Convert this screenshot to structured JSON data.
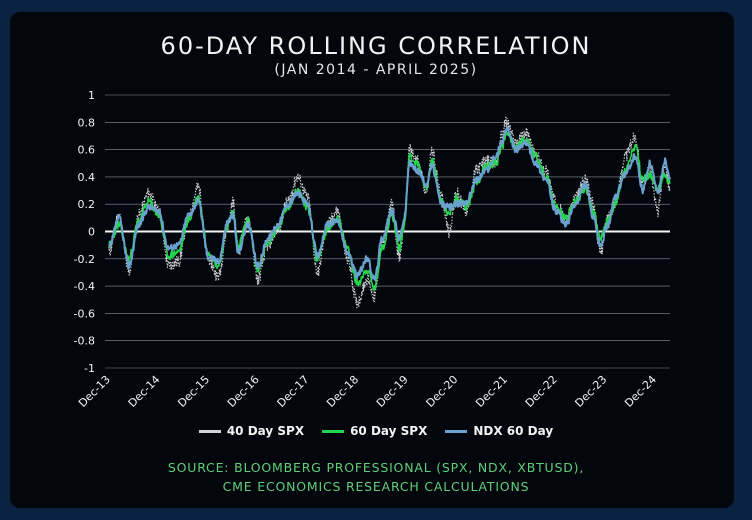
{
  "chart_data": {
    "type": "line",
    "title": "60-DAY ROLLING CORRELATION",
    "subtitle": "(JAN 2014 - APRIL 2025)",
    "ylim": [
      -1,
      1
    ],
    "yticks": [
      "1",
      "0.8",
      "0.6",
      "0.4",
      "0.2",
      "0",
      "-0.2",
      "-0.4",
      "-0.6",
      "-0.8",
      "-1"
    ],
    "xticks": [
      "Dec-13",
      "Dec-14",
      "Dec-15",
      "Dec-16",
      "Dec-17",
      "Dec-18",
      "Dec-19",
      "Dec-20",
      "Dec-21",
      "Dec-22",
      "Dec-23",
      "Dec-24"
    ],
    "x_start": 2013.92,
    "x_end": 2025.3,
    "series": [
      {
        "name": "40 Day SPX",
        "color": "#cfd3d8",
        "dash": "1.5,1.5",
        "points": [
          [
            2014.0,
            -0.15
          ],
          [
            2014.2,
            0.12
          ],
          [
            2014.4,
            -0.3
          ],
          [
            2014.6,
            0.12
          ],
          [
            2014.8,
            0.28
          ],
          [
            2015.0,
            0.15
          ],
          [
            2015.2,
            -0.25
          ],
          [
            2015.4,
            -0.22
          ],
          [
            2015.6,
            0.1
          ],
          [
            2015.8,
            0.33
          ],
          [
            2016.0,
            -0.2
          ],
          [
            2016.2,
            -0.33
          ],
          [
            2016.4,
            0.05
          ],
          [
            2016.5,
            0.22
          ],
          [
            2016.6,
            -0.15
          ],
          [
            2016.8,
            0.1
          ],
          [
            2017.0,
            -0.35
          ],
          [
            2017.2,
            -0.1
          ],
          [
            2017.4,
            0.02
          ],
          [
            2017.6,
            0.22
          ],
          [
            2017.8,
            0.4
          ],
          [
            2018.0,
            0.25
          ],
          [
            2018.2,
            -0.3
          ],
          [
            2018.4,
            0.05
          ],
          [
            2018.6,
            0.15
          ],
          [
            2018.8,
            -0.2
          ],
          [
            2019.0,
            -0.52
          ],
          [
            2019.2,
            -0.35
          ],
          [
            2019.35,
            -0.48
          ],
          [
            2019.5,
            -0.1
          ],
          [
            2019.7,
            0.2
          ],
          [
            2019.85,
            -0.2
          ],
          [
            2019.95,
            0.05
          ],
          [
            2020.05,
            0.6
          ],
          [
            2020.2,
            0.52
          ],
          [
            2020.4,
            0.3
          ],
          [
            2020.5,
            0.6
          ],
          [
            2020.7,
            0.25
          ],
          [
            2020.85,
            0.0
          ],
          [
            2021.0,
            0.28
          ],
          [
            2021.2,
            0.15
          ],
          [
            2021.4,
            0.45
          ],
          [
            2021.6,
            0.52
          ],
          [
            2021.8,
            0.5
          ],
          [
            2021.9,
            0.7
          ],
          [
            2022.0,
            0.8
          ],
          [
            2022.2,
            0.65
          ],
          [
            2022.4,
            0.72
          ],
          [
            2022.6,
            0.55
          ],
          [
            2022.8,
            0.45
          ],
          [
            2023.0,
            0.22
          ],
          [
            2023.2,
            0.08
          ],
          [
            2023.4,
            0.25
          ],
          [
            2023.6,
            0.38
          ],
          [
            2023.75,
            0.2
          ],
          [
            2023.9,
            -0.15
          ],
          [
            2024.05,
            0.1
          ],
          [
            2024.2,
            0.22
          ],
          [
            2024.4,
            0.55
          ],
          [
            2024.6,
            0.7
          ],
          [
            2024.75,
            0.35
          ],
          [
            2024.9,
            0.45
          ],
          [
            2025.05,
            0.15
          ],
          [
            2025.2,
            0.5
          ],
          [
            2025.3,
            0.3
          ]
        ]
      },
      {
        "name": "60 Day SPX",
        "color": "#22d64c",
        "dash": "",
        "points": [
          [
            2014.0,
            -0.1
          ],
          [
            2014.2,
            0.05
          ],
          [
            2014.4,
            -0.2
          ],
          [
            2014.6,
            0.08
          ],
          [
            2014.8,
            0.22
          ],
          [
            2015.0,
            0.12
          ],
          [
            2015.2,
            -0.18
          ],
          [
            2015.4,
            -0.15
          ],
          [
            2015.6,
            0.08
          ],
          [
            2015.8,
            0.25
          ],
          [
            2016.0,
            -0.15
          ],
          [
            2016.2,
            -0.25
          ],
          [
            2016.4,
            0.05
          ],
          [
            2016.5,
            0.15
          ],
          [
            2016.6,
            -0.1
          ],
          [
            2016.8,
            0.08
          ],
          [
            2017.0,
            -0.28
          ],
          [
            2017.2,
            -0.08
          ],
          [
            2017.4,
            0.02
          ],
          [
            2017.6,
            0.18
          ],
          [
            2017.8,
            0.3
          ],
          [
            2018.0,
            0.18
          ],
          [
            2018.2,
            -0.2
          ],
          [
            2018.4,
            0.02
          ],
          [
            2018.6,
            0.1
          ],
          [
            2018.8,
            -0.12
          ],
          [
            2019.0,
            -0.38
          ],
          [
            2019.2,
            -0.28
          ],
          [
            2019.35,
            -0.42
          ],
          [
            2019.5,
            -0.12
          ],
          [
            2019.7,
            0.12
          ],
          [
            2019.85,
            -0.12
          ],
          [
            2019.95,
            0.05
          ],
          [
            2020.05,
            0.55
          ],
          [
            2020.2,
            0.5
          ],
          [
            2020.4,
            0.32
          ],
          [
            2020.5,
            0.52
          ],
          [
            2020.7,
            0.22
          ],
          [
            2020.85,
            0.12
          ],
          [
            2021.0,
            0.25
          ],
          [
            2021.2,
            0.18
          ],
          [
            2021.4,
            0.35
          ],
          [
            2021.6,
            0.48
          ],
          [
            2021.8,
            0.5
          ],
          [
            2021.9,
            0.6
          ],
          [
            2022.0,
            0.72
          ],
          [
            2022.2,
            0.62
          ],
          [
            2022.4,
            0.68
          ],
          [
            2022.6,
            0.55
          ],
          [
            2022.8,
            0.4
          ],
          [
            2023.0,
            0.18
          ],
          [
            2023.2,
            0.1
          ],
          [
            2023.4,
            0.22
          ],
          [
            2023.6,
            0.32
          ],
          [
            2023.75,
            0.15
          ],
          [
            2023.9,
            -0.05
          ],
          [
            2024.05,
            0.08
          ],
          [
            2024.2,
            0.2
          ],
          [
            2024.4,
            0.45
          ],
          [
            2024.6,
            0.62
          ],
          [
            2024.75,
            0.38
          ],
          [
            2024.9,
            0.42
          ],
          [
            2025.05,
            0.3
          ],
          [
            2025.2,
            0.42
          ],
          [
            2025.3,
            0.35
          ]
        ]
      },
      {
        "name": "NDX 60 Day",
        "color": "#6aa2cf",
        "dash": "",
        "points": [
          [
            2014.0,
            -0.12
          ],
          [
            2014.2,
            0.1
          ],
          [
            2014.4,
            -0.25
          ],
          [
            2014.6,
            0.05
          ],
          [
            2014.8,
            0.18
          ],
          [
            2015.0,
            0.15
          ],
          [
            2015.2,
            -0.12
          ],
          [
            2015.4,
            -0.1
          ],
          [
            2015.6,
            0.12
          ],
          [
            2015.8,
            0.22
          ],
          [
            2016.0,
            -0.18
          ],
          [
            2016.2,
            -0.22
          ],
          [
            2016.4,
            0.08
          ],
          [
            2016.5,
            0.12
          ],
          [
            2016.6,
            -0.15
          ],
          [
            2016.8,
            0.05
          ],
          [
            2017.0,
            -0.25
          ],
          [
            2017.2,
            -0.05
          ],
          [
            2017.4,
            0.05
          ],
          [
            2017.6,
            0.2
          ],
          [
            2017.8,
            0.28
          ],
          [
            2018.0,
            0.2
          ],
          [
            2018.2,
            -0.18
          ],
          [
            2018.4,
            0.05
          ],
          [
            2018.6,
            0.08
          ],
          [
            2018.8,
            -0.15
          ],
          [
            2019.0,
            -0.32
          ],
          [
            2019.2,
            -0.2
          ],
          [
            2019.35,
            -0.35
          ],
          [
            2019.5,
            -0.05
          ],
          [
            2019.7,
            0.15
          ],
          [
            2019.85,
            -0.05
          ],
          [
            2019.95,
            0.1
          ],
          [
            2020.05,
            0.5
          ],
          [
            2020.2,
            0.45
          ],
          [
            2020.4,
            0.35
          ],
          [
            2020.5,
            0.48
          ],
          [
            2020.7,
            0.2
          ],
          [
            2020.85,
            0.18
          ],
          [
            2021.0,
            0.2
          ],
          [
            2021.2,
            0.22
          ],
          [
            2021.4,
            0.38
          ],
          [
            2021.6,
            0.45
          ],
          [
            2021.8,
            0.55
          ],
          [
            2021.9,
            0.65
          ],
          [
            2022.0,
            0.75
          ],
          [
            2022.2,
            0.6
          ],
          [
            2022.4,
            0.65
          ],
          [
            2022.6,
            0.5
          ],
          [
            2022.8,
            0.38
          ],
          [
            2023.0,
            0.15
          ],
          [
            2023.2,
            0.05
          ],
          [
            2023.4,
            0.2
          ],
          [
            2023.6,
            0.35
          ],
          [
            2023.75,
            0.1
          ],
          [
            2023.9,
            -0.1
          ],
          [
            2024.05,
            0.05
          ],
          [
            2024.2,
            0.25
          ],
          [
            2024.4,
            0.42
          ],
          [
            2024.6,
            0.55
          ],
          [
            2024.75,
            0.3
          ],
          [
            2024.9,
            0.5
          ],
          [
            2025.05,
            0.28
          ],
          [
            2025.2,
            0.52
          ],
          [
            2025.3,
            0.4
          ]
        ]
      }
    ],
    "legend": [
      "40 Day SPX",
      "60 Day SPX",
      "NDX 60 Day"
    ],
    "legend_position": "bottom",
    "grid": true
  },
  "source": {
    "line1": "SOURCE: BLOOMBERG PROFESSIONAL (SPX, NDX, XBTUSD),",
    "line2": "CME ECONOMICS RESEARCH CALCULATIONS"
  }
}
